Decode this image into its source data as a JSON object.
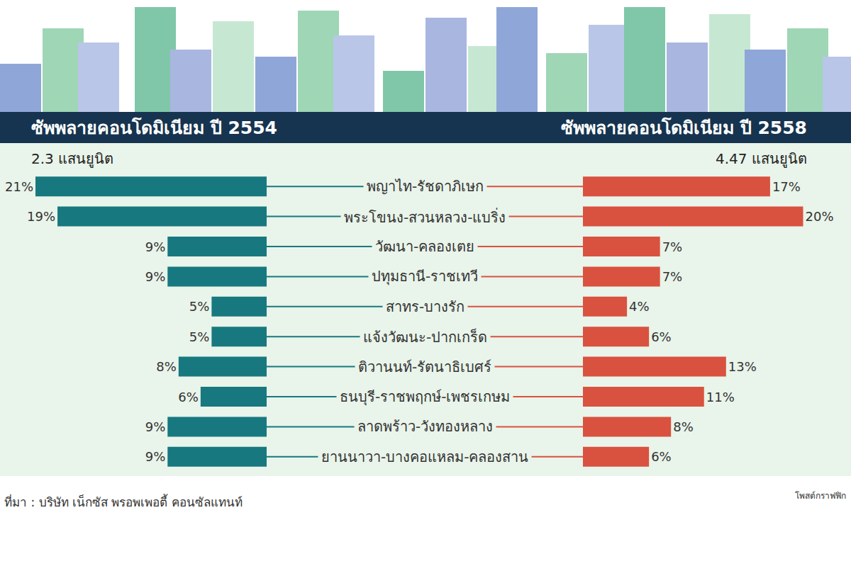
{
  "chart_data": [
    {
      "type": "bar",
      "orientation": "horizontal",
      "title": "ซัพพลายคอนโดมิเนียม ปี 2554",
      "subtitle": "2.3 แสนยูนิต",
      "categories": [
        "พญาไท-รัชดาภิเษก",
        "พระโขนง-สวนหลวง-แบริ่ง",
        "วัฒนา-คลองเตย",
        "ปทุมธานี-ราชเทวี",
        "สาทร-บางรัก",
        "แจ้งวัฒนะ-ปากเกร็ด",
        "ติวานนท์-รัตนาธิเบศร์",
        "ธนบุรี-ราชพฤกษ์-เพชรเกษม",
        "ลาดพร้าว-วังทองหลาง",
        "ยานนาวา-บางคอแหลม-คลองสาน"
      ],
      "values": [
        21,
        19,
        9,
        9,
        5,
        5,
        8,
        6,
        9,
        9
      ],
      "value_labels": [
        "21%",
        "19%",
        "9%",
        "9%",
        "5%",
        "5%",
        "8%",
        "6%",
        "9%",
        "9%"
      ],
      "color": "#17797f",
      "xlim": [
        0,
        21
      ],
      "data_labels": true,
      "tick_labels": false
    },
    {
      "type": "bar",
      "orientation": "horizontal",
      "title": "ซัพพลายคอนโดมิเนียม ปี 2558",
      "subtitle": "4.47 แสนยูนิต",
      "categories": [
        "พญาไท-รัชดาภิเษก",
        "พระโขนง-สวนหลวง-แบริ่ง",
        "วัฒนา-คลองเตย",
        "ปทุมธานี-ราชเทวี",
        "สาทร-บางรัก",
        "แจ้งวัฒนะ-ปากเกร็ด",
        "ติวานนท์-รัตนาธิเบศร์",
        "ธนบุรี-ราชพฤกษ์-เพชรเกษม",
        "ลาดพร้าว-วังทองหลาง",
        "ยานนาวา-บางคอแหลม-คลองสาน"
      ],
      "values": [
        17,
        20,
        7,
        7,
        4,
        6,
        13,
        11,
        8,
        6
      ],
      "value_labels": [
        "17%",
        "20%",
        "7%",
        "7%",
        "4%",
        "6%",
        "13%",
        "11%",
        "8%",
        "6%"
      ],
      "color": "#d9523f",
      "xlim": [
        0,
        21
      ],
      "data_labels": true,
      "tick_labels": false
    }
  ],
  "source": "ที่มา : บริษัท เน็กซัส พรอพเพอตี้ คอนซัลแทนท์",
  "credit": "โพสต์กราฟฟิก"
}
